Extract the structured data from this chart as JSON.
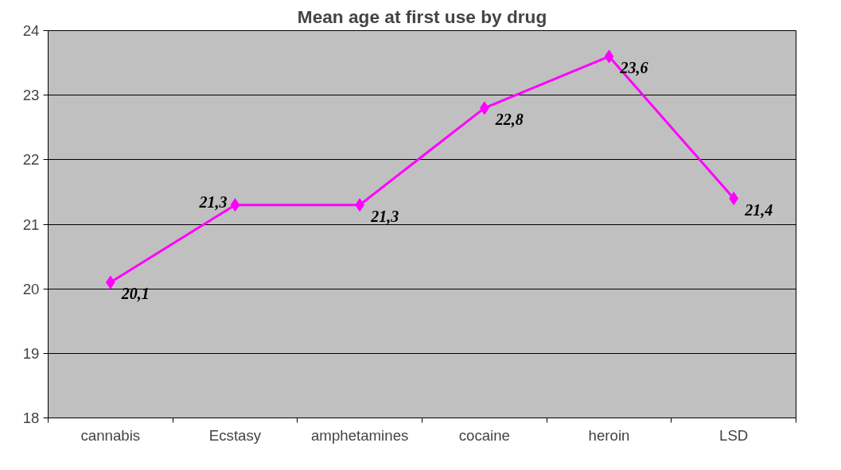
{
  "chart_data": {
    "type": "line",
    "title": "Mean age at first use by drug",
    "categories": [
      "cannabis",
      "Ecstasy",
      "amphetamines",
      "cocaine",
      "heroin",
      "LSD"
    ],
    "series": [
      {
        "color": "#ff00ff",
        "values": [
          20.1,
          21.3,
          21.3,
          22.8,
          23.6,
          21.4
        ],
        "value_labels": [
          "20,1",
          "21,3",
          "21,3",
          "22,8",
          "23,6",
          "21,4"
        ]
      }
    ],
    "ylim": [
      18,
      24
    ],
    "yticks": [
      18,
      19,
      20,
      21,
      22,
      23,
      24
    ],
    "grid": "y",
    "marker": "diamond"
  }
}
